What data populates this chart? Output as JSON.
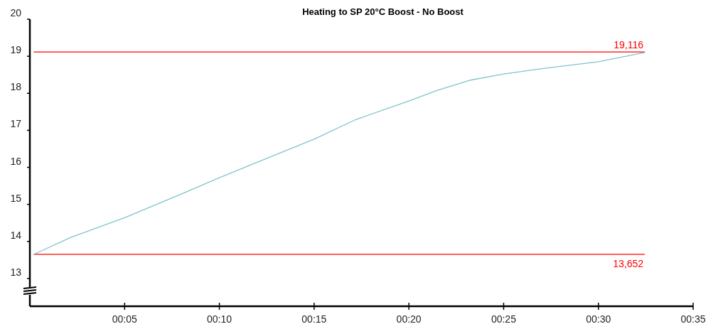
{
  "chart_data": {
    "type": "line",
    "title": "Heating to SP 20°C Boost - No Boost",
    "x": [
      0.2,
      2.16,
      5,
      7.81,
      10,
      12.29,
      15,
      17.2,
      20,
      21.5,
      23.2,
      25,
      26.95,
      30,
      32.45
    ],
    "series": [
      {
        "color": "#7fc4cc",
        "values": [
          13.65,
          14.11,
          14.64,
          15.24,
          15.72,
          16.2,
          16.76,
          17.29,
          17.79,
          18.08,
          18.35,
          18.52,
          18.66,
          18.85,
          19.1
        ]
      }
    ],
    "xlim": [
      0,
      35
    ],
    "xticks": [
      {
        "value": 5,
        "label": "00:05"
      },
      {
        "value": 10,
        "label": "00:10"
      },
      {
        "value": 15,
        "label": "00:15"
      },
      {
        "value": 20,
        "label": "00:20"
      },
      {
        "value": 25,
        "label": "00:25"
      },
      {
        "value": 30,
        "label": "00:30"
      },
      {
        "value": 35,
        "label": "00:35"
      }
    ],
    "ylim": [
      12.25,
      20
    ],
    "yticks": [
      13,
      14,
      15,
      16,
      17,
      18,
      19,
      20
    ],
    "ref_lines": [
      {
        "axis": "y",
        "value": 19.116,
        "label": "19,116",
        "color": "#ff0000"
      },
      {
        "axis": "y",
        "value": 13.652,
        "label": "13,652",
        "color": "#ff0000"
      }
    ],
    "grid": false,
    "marker": "none",
    "line_style": "solid"
  }
}
